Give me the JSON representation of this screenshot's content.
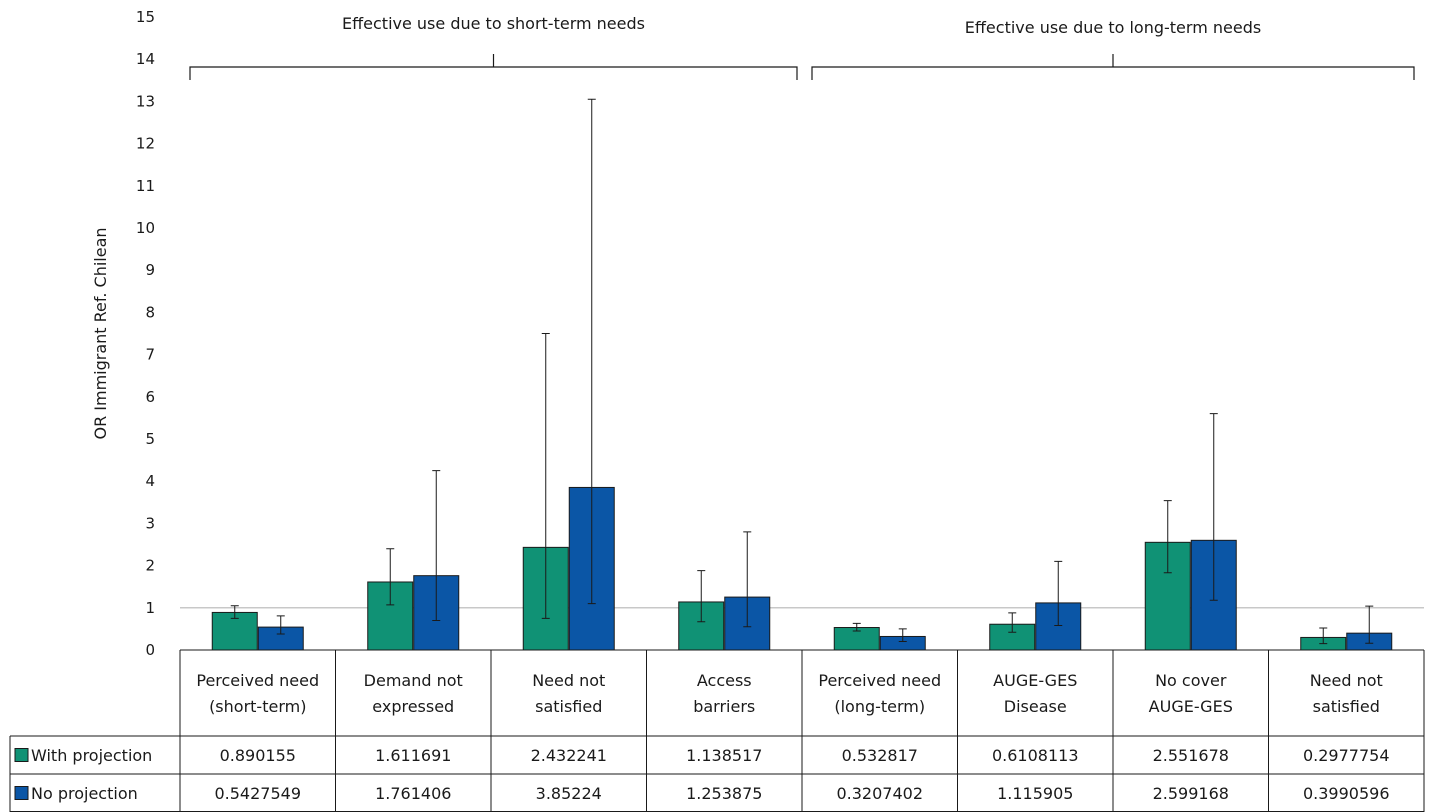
{
  "chart_data": {
    "type": "bar",
    "ylabel": "OR Immigrant Ref. Chilean",
    "ylim": [
      0,
      15
    ],
    "yticks": [
      0,
      1,
      2,
      3,
      4,
      5,
      6,
      7,
      8,
      9,
      10,
      11,
      12,
      13,
      14,
      15
    ],
    "reference_line": 1,
    "legend": "left, in data table",
    "categories": [
      [
        "Perceived need",
        "(short-term)"
      ],
      [
        "Demand not",
        "expressed"
      ],
      [
        "Need not",
        "satisfied"
      ],
      [
        "Access",
        "barriers"
      ],
      [
        "Perceived need",
        "(long-term)"
      ],
      [
        "AUGE-GES",
        "Disease"
      ],
      [
        "No cover",
        "AUGE-GES"
      ],
      [
        "Need not",
        "satisfied"
      ]
    ],
    "groups": [
      {
        "label": "Effective use due to short-term needs",
        "from": 0,
        "to": 3
      },
      {
        "label": "Effective use due to long-term needs",
        "from": 4,
        "to": 7
      }
    ],
    "series": [
      {
        "name": "With projection",
        "color": "#109275",
        "values": [
          0.890155,
          1.611691,
          2.432241,
          1.138517,
          0.532817,
          0.6108113,
          2.551678,
          0.2977754
        ],
        "labels": [
          "0.890155",
          "1.611691",
          "2.432241",
          "1.138517",
          "0.532817",
          "0.6108113",
          "2.551678",
          "0.2977754"
        ],
        "err_low": [
          0.75,
          1.07,
          0.75,
          0.67,
          0.45,
          0.42,
          1.83,
          0.15
        ],
        "err_high": [
          1.05,
          2.4,
          7.5,
          1.88,
          0.63,
          0.88,
          3.54,
          0.52
        ]
      },
      {
        "name": "No projection",
        "color": "#0b56a6",
        "values": [
          0.5427549,
          1.761406,
          3.85224,
          1.253875,
          0.3207402,
          1.115905,
          2.599168,
          0.3990596
        ],
        "labels": [
          "0.5427549",
          "1.761406",
          "3.85224",
          "1.253875",
          "0.3207402",
          "1.115905",
          "2.599168",
          "0.3990596"
        ],
        "err_low": [
          0.38,
          0.7,
          1.1,
          0.55,
          0.2,
          0.58,
          1.18,
          0.16
        ],
        "err_high": [
          0.81,
          4.25,
          13.05,
          2.8,
          0.5,
          2.1,
          5.6,
          1.04
        ]
      }
    ]
  }
}
